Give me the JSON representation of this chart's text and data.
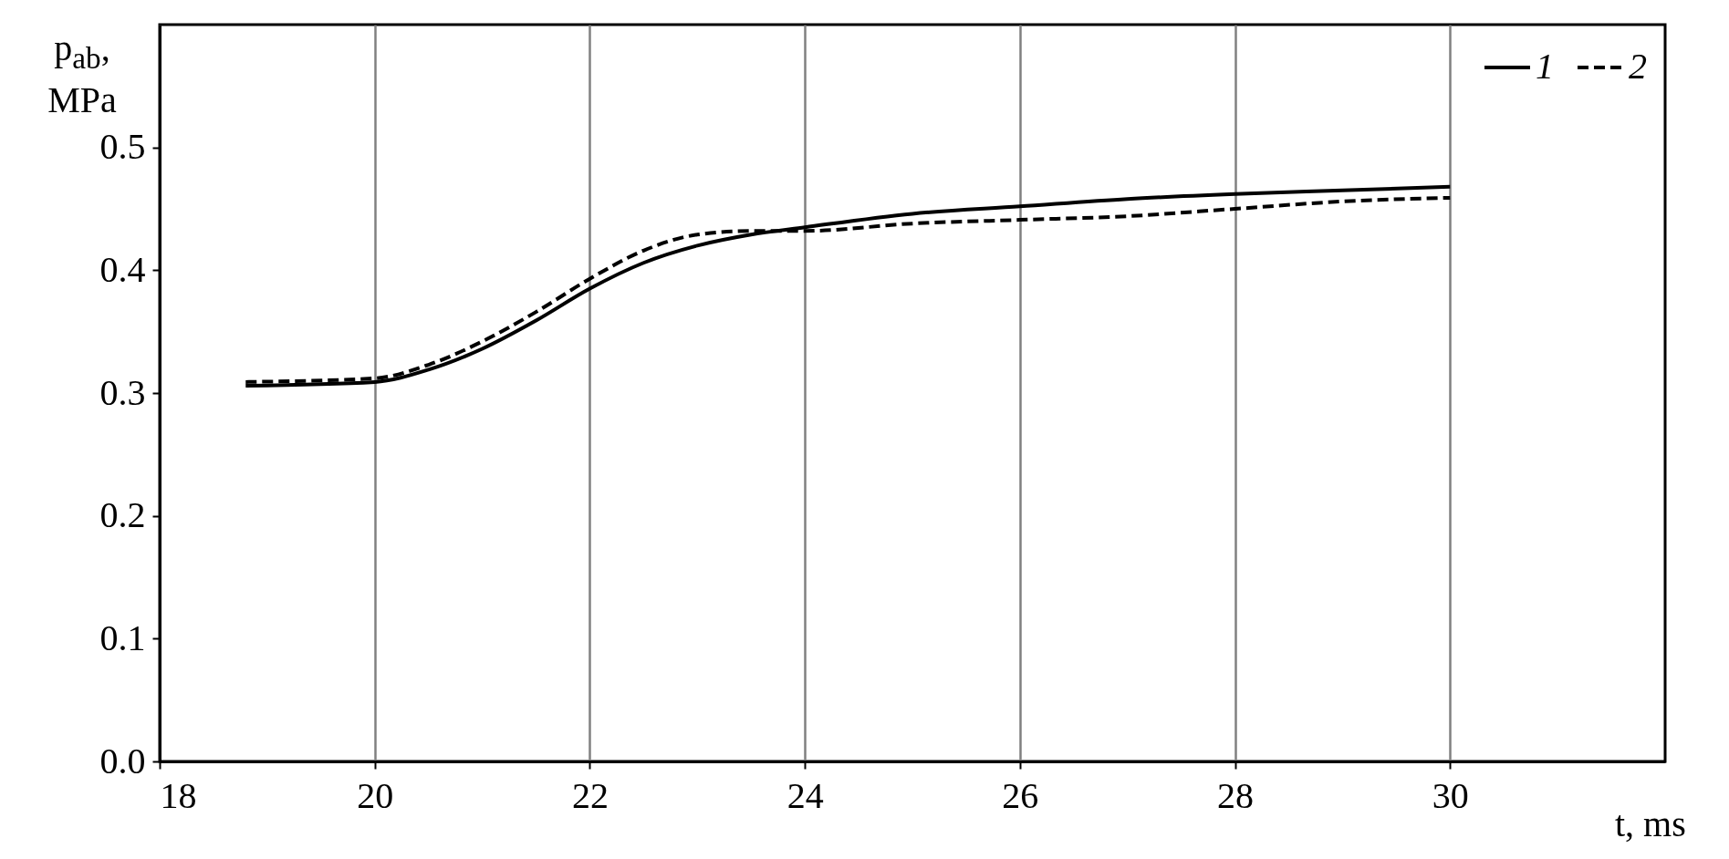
{
  "chart_data": {
    "type": "line",
    "xlabel": "t, ms",
    "ylabel": "p$_{ab}$, MPa",
    "xlim": [
      18,
      32
    ],
    "ylim": [
      0,
      0.6
    ],
    "xticks": [
      18,
      20,
      22,
      24,
      26,
      28,
      30
    ],
    "yticks": [
      {
        "value": 0,
        "label": "0.0"
      },
      0.1,
      0.2,
      0.3,
      0.4,
      0.5
    ],
    "grid": "x",
    "legend": "top right",
    "marker": "none",
    "series": [
      {
        "name": "1",
        "color": "#000000",
        "line_style": "solid",
        "x": [
          18.8,
          20,
          20.5,
          21,
          21.5,
          22,
          22.5,
          23,
          23.5,
          24,
          25,
          26,
          27,
          28,
          29,
          30
        ],
        "values": [
          0.306,
          0.309,
          0.319,
          0.336,
          0.359,
          0.385,
          0.406,
          0.42,
          0.429,
          0.435,
          0.446,
          0.452,
          0.458,
          0.462,
          0.465,
          0.468
        ]
      },
      {
        "name": "2",
        "color": "#000000",
        "line_style": "dashed",
        "x": [
          18.8,
          20,
          20.5,
          21,
          21.5,
          22,
          22.5,
          23,
          23.5,
          24,
          25,
          26,
          27,
          28,
          29,
          30
        ],
        "values": [
          0.309,
          0.312,
          0.323,
          0.342,
          0.366,
          0.393,
          0.416,
          0.429,
          0.432,
          0.432,
          0.438,
          0.441,
          0.444,
          0.45,
          0.456,
          0.459
        ]
      }
    ]
  }
}
